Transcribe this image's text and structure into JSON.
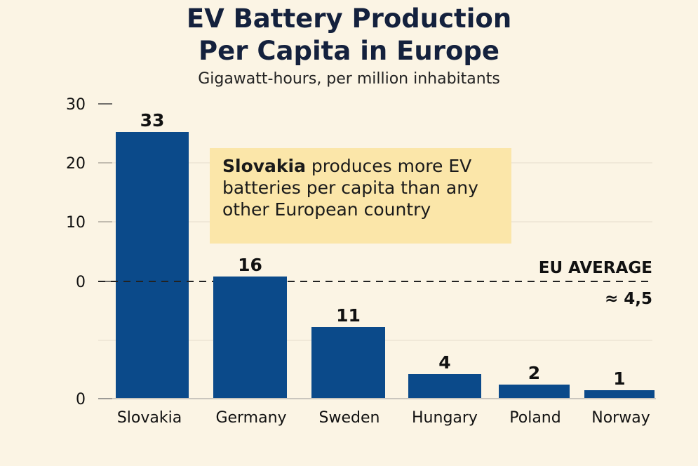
{
  "title_line1": "EV Battery Production",
  "title_line2": "Per Capita in Europe",
  "subtitle": "Gigawatt-hours, per million inhabitants",
  "callout": {
    "bold": "Slovakia",
    "rest": " produces more EV batteries per capita than any other European country"
  },
  "reference": {
    "label": "EU AVERAGE",
    "value_label": "≈ 4,5"
  },
  "colors": {
    "bar": "#0b4a8a",
    "background": "#fbf4e4",
    "callout": "#fbe6a9"
  },
  "chart_data": {
    "type": "bar",
    "title": "EV Battery Production Per Capita in Europe",
    "subtitle": "Gigawatt-hours, per million inhabitants",
    "categories": [
      "Slovakia",
      "Germany",
      "Sweden",
      "Hungary",
      "Poland",
      "Norway"
    ],
    "values": [
      33,
      16,
      11,
      4,
      2,
      1
    ],
    "data_labels": [
      "33",
      "16",
      "11",
      "4",
      "2",
      "1"
    ],
    "y_tick_labels": [
      "30",
      "20",
      "10",
      "0",
      "0"
    ],
    "reference_line": {
      "label": "EU AVERAGE",
      "value": 4.5,
      "value_label": "≈ 4,5"
    },
    "grid": true
  }
}
